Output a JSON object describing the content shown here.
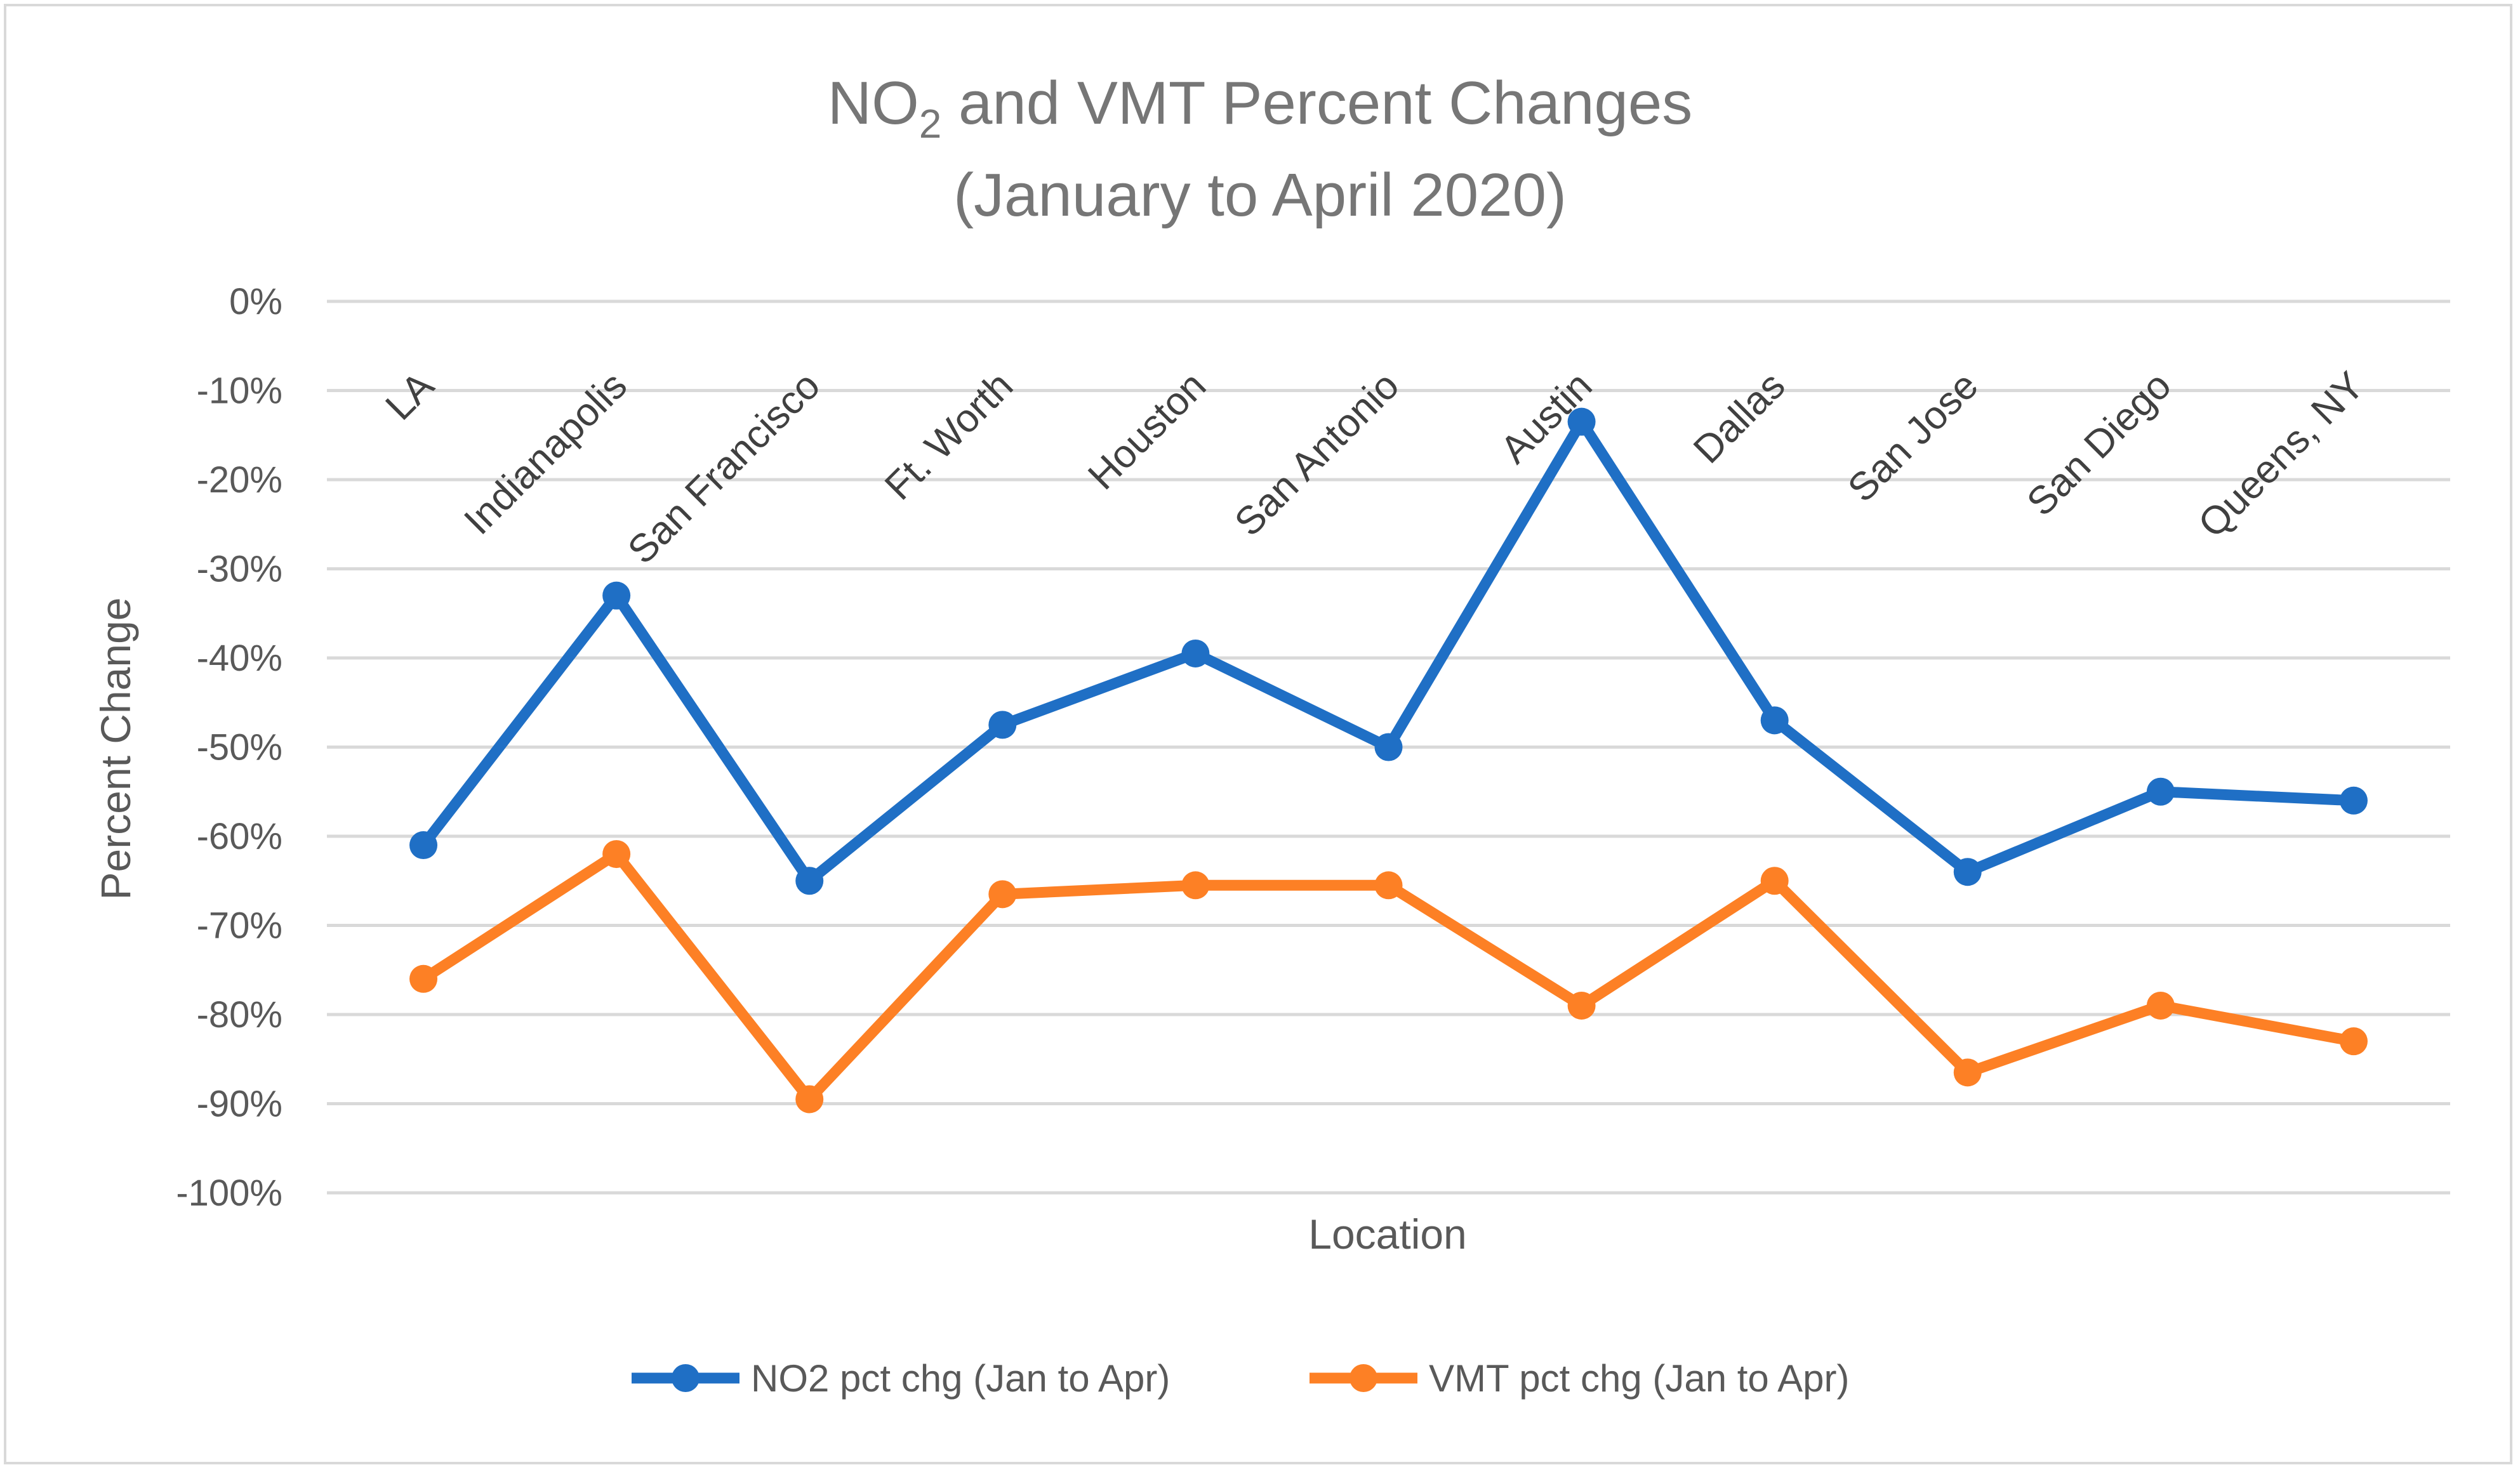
{
  "chart_data": {
    "type": "line",
    "title": {
      "line1_main": "NO",
      "line1_sub": "2",
      "line1_rest": " and VMT Percent Changes",
      "line2": "(January to April 2020)"
    },
    "xlabel": "Location",
    "ylabel": "Percent Change",
    "ylim": [
      -100,
      0
    ],
    "ytick_step": 10,
    "ytick_labels": [
      "0%",
      "-10%",
      "-20%",
      "-30%",
      "-40%",
      "-50%",
      "-60%",
      "-70%",
      "-80%",
      "-90%",
      "-100%"
    ],
    "grid": true,
    "legend_position": "bottom",
    "categories": [
      "LA",
      "Indianapolis",
      "San Francisco",
      "Ft. Worth",
      "Houston",
      "San Antonio",
      "Austin",
      "Dallas",
      "San Jose",
      "San Diego",
      "Queens, NY"
    ],
    "series": [
      {
        "name": "NO2 pct chg (Jan to Apr)",
        "color": "#1f6fc5",
        "values": [
          -61,
          -33,
          -65,
          -47.5,
          -39.5,
          -50,
          -13.5,
          -47,
          -64,
          -55,
          -56
        ]
      },
      {
        "name": "VMT pct chg (Jan to Apr)",
        "color": "#fd8025",
        "values": [
          -76,
          -62,
          -89.5,
          -66.5,
          -65.5,
          -65.5,
          -79,
          -65,
          -86.5,
          -79,
          -83
        ]
      }
    ]
  }
}
